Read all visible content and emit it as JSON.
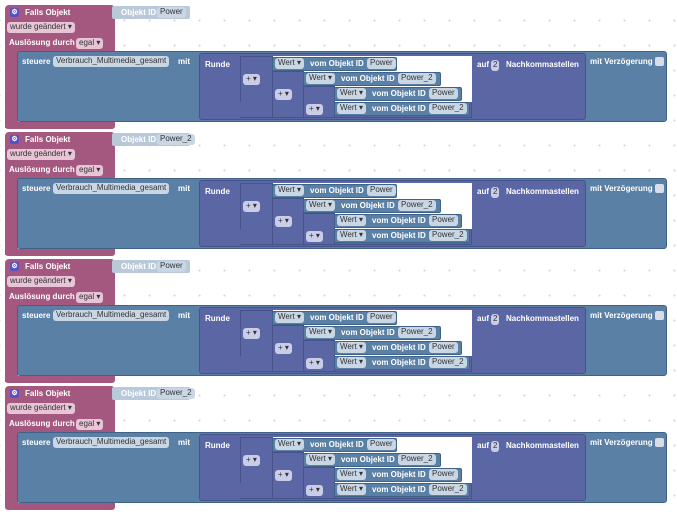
{
  "labels": {
    "falls": "Falls Objekt",
    "objekt_id": "Objekt ID",
    "wurde": "wurde geändert ▾",
    "ausloesung": "Auslösung durch",
    "egal": "egal ▾",
    "steuere": "steuere",
    "target": "Verbrauch_Multimedia_gesamt",
    "mit": "mit",
    "runde": "Runde",
    "auf": "auf",
    "decimals": "2",
    "nachkomma": "Nachkommastellen",
    "verzoegerung": "mit Verzögerung",
    "plus": "+ ▾",
    "wert": "Wert ▾",
    "vom": "vom Objekt ID"
  },
  "groups": [
    {
      "trigger_id": "Power",
      "values": [
        "Power",
        "Power_2",
        "Power",
        "Power_2"
      ]
    },
    {
      "trigger_id": "Power_2",
      "values": [
        "Power",
        "Power_2",
        "Power",
        "Power_2"
      ]
    },
    {
      "trigger_id": "Power",
      "values": [
        "Power",
        "Power_2",
        "Power",
        "Power_2"
      ]
    },
    {
      "trigger_id": "Power_2",
      "values": [
        "Power",
        "Power_2",
        "Power",
        "Power_2"
      ]
    }
  ],
  "colors": {
    "event": "#a5587f",
    "control": "#5b80a5",
    "math": "#5b67a5"
  }
}
